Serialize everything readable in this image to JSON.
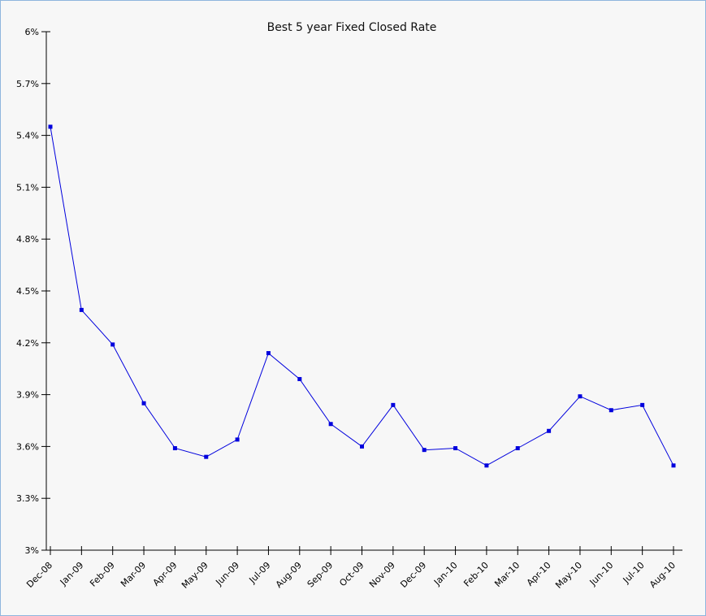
{
  "chart_data": {
    "type": "line",
    "title": "Best 5 year Fixed Closed Rate",
    "xlabel": "",
    "ylabel": "",
    "categories": [
      "Dec-08",
      "Jan-09",
      "Feb-09",
      "Mar-09",
      "Apr-09",
      "May-09",
      "Jun-09",
      "Jul-09",
      "Aug-09",
      "Sep-09",
      "Oct-09",
      "Nov-09",
      "Dec-09",
      "Jan-10",
      "Feb-10",
      "Mar-10",
      "Apr-10",
      "May-10",
      "Jun-10",
      "Jul-10",
      "Aug-10"
    ],
    "series": [
      {
        "values": [
          5.45,
          4.39,
          4.19,
          3.85,
          3.59,
          3.54,
          3.64,
          4.14,
          3.99,
          3.73,
          3.6,
          3.84,
          3.58,
          3.59,
          3.49,
          3.59,
          3.69,
          3.89,
          3.81,
          3.84,
          3.49
        ],
        "color": "#0000dd"
      }
    ],
    "ylim": [
      3.0,
      6.0
    ],
    "y_ticks": [
      "3%",
      "3.3%",
      "3.6%",
      "3.9%",
      "4.2%",
      "4.5%",
      "4.8%",
      "5.1%",
      "5.4%",
      "5.7%",
      "6%"
    ],
    "y_tick_values": [
      3.0,
      3.3,
      3.6,
      3.9,
      4.2,
      4.5,
      4.8,
      5.1,
      5.4,
      5.7,
      6.0
    ],
    "grid": false,
    "legend": "none",
    "colors": {
      "background": "#f7f7f7",
      "frame": "#8fb6dd",
      "axis": "#000000",
      "line": "#0000dd"
    }
  }
}
